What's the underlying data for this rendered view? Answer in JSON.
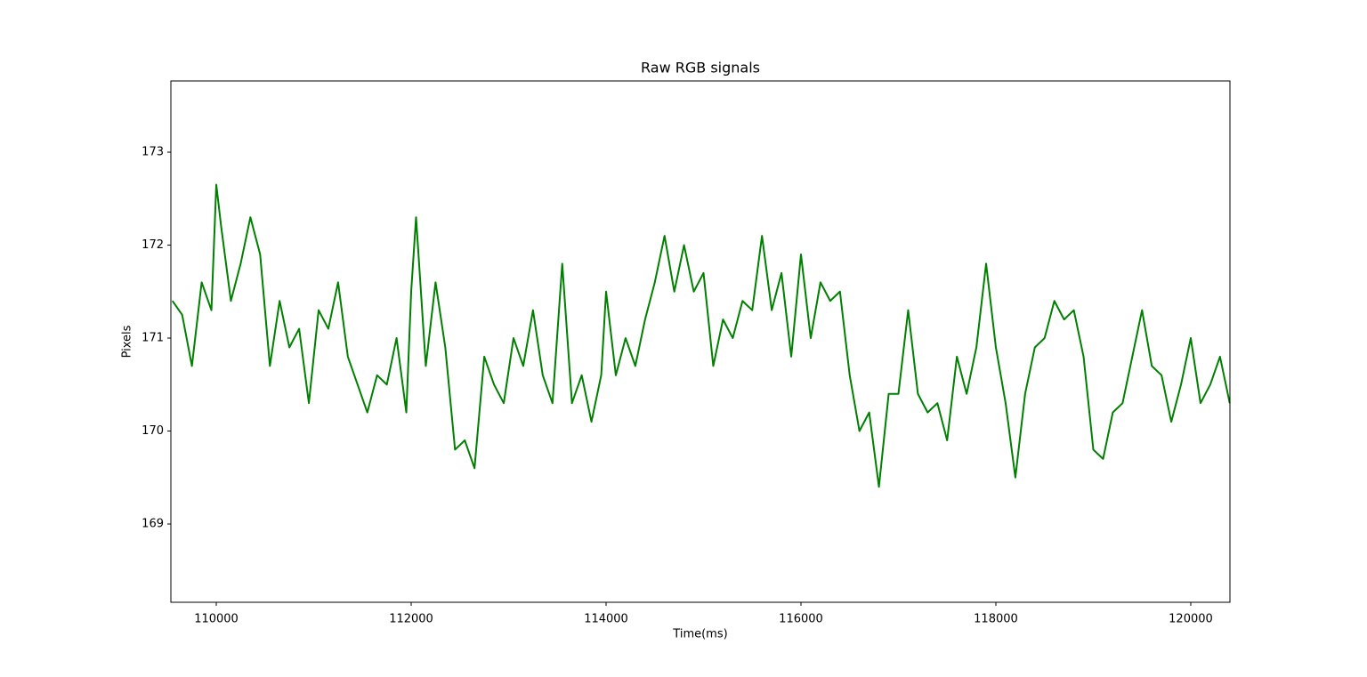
{
  "chart_data": {
    "type": "line",
    "title": "Raw RGB signals",
    "xlabel": "Time(ms)",
    "ylabel": "Pixels",
    "color": "#008000",
    "x": [
      109550,
      109650,
      109750,
      109850,
      109950,
      110000,
      110050,
      110150,
      110250,
      110350,
      110450,
      110550,
      110650,
      110750,
      110850,
      110950,
      111050,
      111150,
      111250,
      111350,
      111450,
      111550,
      111650,
      111750,
      111850,
      111950,
      112000,
      112050,
      112150,
      112250,
      112350,
      112450,
      112550,
      112650,
      112750,
      112850,
      112950,
      113050,
      113150,
      113250,
      113350,
      113450,
      113550,
      113650,
      113750,
      113850,
      113950,
      114000,
      114100,
      114200,
      114300,
      114400,
      114500,
      114600,
      114700,
      114800,
      114900,
      115000,
      115100,
      115200,
      115300,
      115400,
      115500,
      115600,
      115700,
      115800,
      115900,
      116000,
      116100,
      116200,
      116300,
      116400,
      116500,
      116600,
      116700,
      116800,
      116900,
      117000,
      117100,
      117200,
      117300,
      117400,
      117500,
      117600,
      117700,
      117800,
      117900,
      118000,
      118100,
      118200,
      118300,
      118400,
      118500,
      118600,
      118700,
      118800,
      118900,
      119000,
      119100,
      119200,
      119300,
      119400,
      119500,
      119600,
      119700,
      119800,
      119900,
      120000,
      120100,
      120200,
      120300,
      120400
    ],
    "values": [
      171.4,
      171.25,
      170.7,
      171.6,
      171.3,
      172.65,
      172.2,
      171.4,
      171.8,
      172.3,
      171.9,
      170.7,
      171.4,
      170.9,
      171.1,
      170.3,
      171.3,
      171.1,
      171.6,
      170.8,
      170.5,
      170.2,
      170.6,
      170.5,
      171.0,
      170.2,
      171.5,
      172.3,
      170.7,
      171.6,
      170.9,
      169.8,
      169.9,
      169.6,
      170.8,
      170.5,
      170.3,
      171.0,
      170.7,
      171.3,
      170.6,
      170.3,
      171.8,
      170.3,
      170.6,
      170.1,
      170.6,
      171.5,
      170.6,
      171.0,
      170.7,
      171.2,
      171.6,
      172.1,
      171.5,
      172.0,
      171.5,
      171.7,
      170.7,
      171.2,
      171.0,
      171.4,
      171.3,
      172.1,
      171.3,
      171.7,
      170.8,
      171.9,
      171.0,
      171.6,
      171.4,
      171.5,
      170.6,
      170.0,
      170.2,
      169.4,
      170.4,
      170.4,
      171.3,
      170.4,
      170.2,
      170.3,
      169.9,
      170.8,
      170.4,
      170.9,
      171.8,
      170.9,
      170.3,
      169.5,
      170.4,
      170.9,
      171.0,
      171.4,
      171.2,
      171.3,
      170.8,
      169.8,
      169.7,
      170.2,
      170.3,
      170.8,
      171.3,
      170.7,
      170.6,
      170.1,
      170.5,
      171.0,
      170.3,
      170.5,
      170.8,
      170.3
    ],
    "xlim": [
      109534,
      120402
    ],
    "ylim": [
      168.158,
      173.766
    ],
    "xticks": [
      110000,
      112000,
      114000,
      116000,
      118000,
      120000
    ],
    "yticks": [
      169,
      170,
      171,
      172,
      173
    ]
  }
}
